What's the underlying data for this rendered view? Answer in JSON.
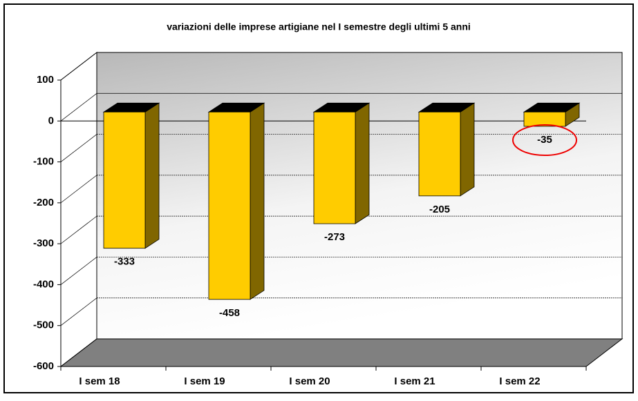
{
  "chart_data": {
    "type": "bar",
    "title": "variazioni delle imprese artigiane nel I semestre degli ultimi 5 anni",
    "categories": [
      "I sem 18",
      "I sem 19",
      "I sem 20",
      "I sem 21",
      "I sem 22"
    ],
    "values": [
      -333,
      -458,
      -273,
      -205,
      -35
    ],
    "color": "#ffcc00",
    "ylim": [
      -600,
      100
    ],
    "yticks": [
      -600,
      -500,
      -400,
      -300,
      -200,
      -100,
      0,
      100
    ],
    "grid": true
  }
}
